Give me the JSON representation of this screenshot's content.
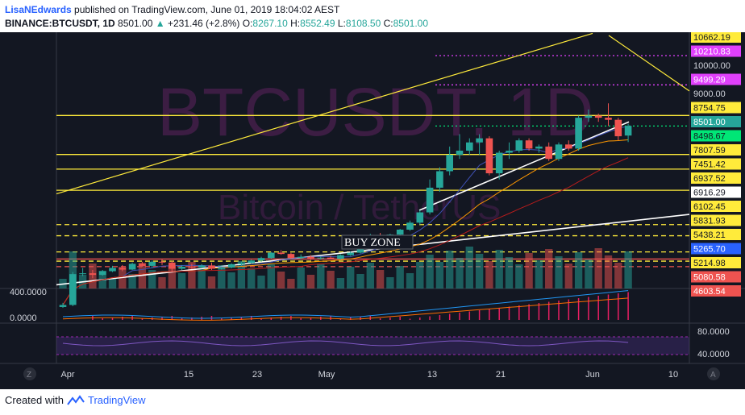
{
  "header": {
    "user": "LisaNEdwards",
    "published_text": "published on TradingView.com, June 01, 2019 18:04:02 AEST",
    "symbol": "BINANCE:BTCUSDT, 1D",
    "last": "8501.00",
    "arrow": "▲",
    "change": "+231.46 (+2.8%)",
    "open_label": "O:",
    "open": "8267.10",
    "high_label": "H:",
    "high": "8552.49",
    "low_label": "L:",
    "low": "8108.50",
    "close_label": "C:",
    "close": "8501.00"
  },
  "watermark": {
    "symbol": "BTCUSDT, 1D",
    "name": "Bitcoin / TetherUS"
  },
  "annotation": "BUY ZONE",
  "footer": {
    "created_with": "Created with",
    "brand": "TradingView"
  },
  "colors": {
    "background": "#131722",
    "up": "#26a69a",
    "down": "#ef5350",
    "yellow": "#ffeb3b",
    "magenta": "#e040fb",
    "accent": "#2962ff"
  },
  "chart_data": {
    "type": "candlestick",
    "price_scale_labels": [
      {
        "text": "10662.19",
        "value": 10662.19,
        "bg": "#ffeb3b",
        "fg": "#131722"
      },
      {
        "text": "10210.83",
        "value": 10210.83,
        "bg": "#e040fb",
        "fg": "#ffffff"
      },
      {
        "text": "10000.00",
        "value": 10000,
        "bg": "",
        "fg": "#d1d4dc"
      },
      {
        "text": "9499.29",
        "value": 9499.29,
        "bg": "#e040fb",
        "fg": "#ffffff"
      },
      {
        "text": "9000.00",
        "value": 9000,
        "bg": "",
        "fg": "#d1d4dc"
      },
      {
        "text": "8754.75",
        "value": 8754.75,
        "bg": "#ffeb3b",
        "fg": "#131722"
      },
      {
        "text": "8501.00",
        "value": 8501.0,
        "bg": "#26a69a",
        "fg": "#ffffff"
      },
      {
        "text": "8498.67",
        "value": 8498.67,
        "bg": "#00e676",
        "fg": "#131722"
      },
      {
        "text": "7807.59",
        "value": 7807.59,
        "bg": "#ffeb3b",
        "fg": "#131722"
      },
      {
        "text": "7451.42",
        "value": 7451.42,
        "bg": "#ffeb3b",
        "fg": "#131722"
      },
      {
        "text": "6937.52",
        "value": 6937.52,
        "bg": "#ffeb3b",
        "fg": "#131722"
      },
      {
        "text": "6916.29",
        "value": 6916.29,
        "bg": "#ffffff",
        "fg": "#131722"
      },
      {
        "text": "6102.45",
        "value": 6102.45,
        "bg": "#ffeb3b",
        "fg": "#131722"
      },
      {
        "text": "5831.93",
        "value": 5831.93,
        "bg": "#ffeb3b",
        "fg": "#131722"
      },
      {
        "text": "5438.21",
        "value": 5438.21,
        "bg": "#ffeb3b",
        "fg": "#131722"
      },
      {
        "text": "5265.70",
        "value": 5265.7,
        "bg": "#2962ff",
        "fg": "#ffffff"
      },
      {
        "text": "5214.98",
        "value": 5214.98,
        "bg": "#ffeb3b",
        "fg": "#131722"
      },
      {
        "text": "5080.58",
        "value": 5080.58,
        "bg": "#ef5350",
        "fg": "#ffffff"
      },
      {
        "text": "4603.54",
        "value": 4603.54,
        "bg": "#ef5350",
        "fg": "#ffffff"
      }
    ],
    "indicator_labels": [
      "400.0000",
      "0.0000"
    ],
    "rsi_labels": [
      "80.0000",
      "40.0000"
    ],
    "x_labels": [
      "Apr",
      "15",
      "23",
      "May",
      "13",
      "21",
      "Jun",
      "10"
    ],
    "horizontal_levels": [
      {
        "value": 8754.75,
        "color": "#ffeb3b",
        "style": "solid"
      },
      {
        "value": 7807.59,
        "color": "#ffeb3b",
        "style": "solid"
      },
      {
        "value": 7451.42,
        "color": "#ffeb3b",
        "style": "solid"
      },
      {
        "value": 6937.52,
        "color": "#ffeb3b",
        "style": "solid"
      },
      {
        "value": 6102.45,
        "color": "#ffeb3b",
        "style": "dashed"
      },
      {
        "value": 5831.93,
        "color": "#ffeb3b",
        "style": "dashed"
      },
      {
        "value": 5438.21,
        "color": "#ffeb3b",
        "style": "dashed"
      },
      {
        "value": 5214.98,
        "color": "#ffeb3b",
        "style": "dashed"
      },
      {
        "value": 5265.7,
        "color": "#ef5350",
        "style": "solid"
      },
      {
        "value": 5080.58,
        "color": "#ef5350",
        "style": "dashed"
      },
      {
        "value": 10210.83,
        "color": "#e040fb",
        "style": "dotted"
      },
      {
        "value": 9499.29,
        "color": "#e040fb",
        "style": "dotted"
      },
      {
        "value": 8498.67,
        "color": "#00e676",
        "style": "dotted"
      }
    ],
    "candles": [
      {
        "o": 4100,
        "h": 4200,
        "l": 4080,
        "c": 4150
      },
      {
        "o": 4150,
        "h": 4950,
        "l": 4120,
        "c": 4900
      },
      {
        "o": 4900,
        "h": 5050,
        "l": 4850,
        "c": 4920
      },
      {
        "o": 4920,
        "h": 5000,
        "l": 4800,
        "c": 4880
      },
      {
        "o": 4880,
        "h": 5000,
        "l": 4860,
        "c": 4970
      },
      {
        "o": 4970,
        "h": 5100,
        "l": 4950,
        "c": 5050
      },
      {
        "o": 5050,
        "h": 5120,
        "l": 4970,
        "c": 5010
      },
      {
        "o": 5010,
        "h": 5180,
        "l": 5000,
        "c": 5150
      },
      {
        "o": 5150,
        "h": 5200,
        "l": 5080,
        "c": 5100
      },
      {
        "o": 5100,
        "h": 5230,
        "l": 5050,
        "c": 5200
      },
      {
        "o": 5200,
        "h": 5260,
        "l": 5120,
        "c": 5180
      },
      {
        "o": 5180,
        "h": 5220,
        "l": 4950,
        "c": 5030
      },
      {
        "o": 5030,
        "h": 5120,
        "l": 5000,
        "c": 5080
      },
      {
        "o": 5080,
        "h": 5150,
        "l": 5020,
        "c": 5060
      },
      {
        "o": 5060,
        "h": 5140,
        "l": 5040,
        "c": 5110
      },
      {
        "o": 5110,
        "h": 5180,
        "l": 5000,
        "c": 5030
      },
      {
        "o": 5030,
        "h": 5090,
        "l": 5010,
        "c": 5060
      },
      {
        "o": 5060,
        "h": 5160,
        "l": 5040,
        "c": 5140
      },
      {
        "o": 5140,
        "h": 5200,
        "l": 5100,
        "c": 5170
      },
      {
        "o": 5170,
        "h": 5250,
        "l": 5150,
        "c": 5230
      },
      {
        "o": 5230,
        "h": 5320,
        "l": 5200,
        "c": 5290
      },
      {
        "o": 5290,
        "h": 5440,
        "l": 5270,
        "c": 5420
      },
      {
        "o": 5420,
        "h": 5480,
        "l": 5370,
        "c": 5390
      },
      {
        "o": 5390,
        "h": 5420,
        "l": 5260,
        "c": 5290
      },
      {
        "o": 5290,
        "h": 5380,
        "l": 5260,
        "c": 5320
      },
      {
        "o": 5320,
        "h": 5360,
        "l": 5240,
        "c": 5280
      },
      {
        "o": 5280,
        "h": 5330,
        "l": 5250,
        "c": 5300
      },
      {
        "o": 5300,
        "h": 5340,
        "l": 5260,
        "c": 5270
      },
      {
        "o": 5270,
        "h": 5380,
        "l": 5250,
        "c": 5360
      },
      {
        "o": 5360,
        "h": 5450,
        "l": 5340,
        "c": 5420
      },
      {
        "o": 5420,
        "h": 5800,
        "l": 5400,
        "c": 5750
      },
      {
        "o": 5750,
        "h": 5880,
        "l": 5700,
        "c": 5840
      },
      {
        "o": 5840,
        "h": 5900,
        "l": 5780,
        "c": 5820
      },
      {
        "o": 5820,
        "h": 5880,
        "l": 5790,
        "c": 5860
      },
      {
        "o": 5860,
        "h": 6000,
        "l": 5840,
        "c": 5980
      },
      {
        "o": 5980,
        "h": 6200,
        "l": 5950,
        "c": 6150
      },
      {
        "o": 6150,
        "h": 6450,
        "l": 6100,
        "c": 6400
      },
      {
        "o": 6400,
        "h": 7200,
        "l": 6350,
        "c": 7000
      },
      {
        "o": 7000,
        "h": 7500,
        "l": 6900,
        "c": 7400
      },
      {
        "o": 7400,
        "h": 8000,
        "l": 7300,
        "c": 7800
      },
      {
        "o": 7800,
        "h": 8300,
        "l": 7700,
        "c": 7900
      },
      {
        "o": 7900,
        "h": 8200,
        "l": 7800,
        "c": 8100
      },
      {
        "o": 8100,
        "h": 8300,
        "l": 7800,
        "c": 8200
      },
      {
        "o": 8200,
        "h": 8250,
        "l": 7300,
        "c": 7350
      },
      {
        "o": 7350,
        "h": 7900,
        "l": 7200,
        "c": 7850
      },
      {
        "o": 7850,
        "h": 8100,
        "l": 7700,
        "c": 7900
      },
      {
        "o": 7900,
        "h": 8200,
        "l": 7850,
        "c": 8150
      },
      {
        "o": 8150,
        "h": 8200,
        "l": 7900,
        "c": 7950
      },
      {
        "o": 7950,
        "h": 8050,
        "l": 7850,
        "c": 8000
      },
      {
        "o": 8000,
        "h": 8100,
        "l": 7650,
        "c": 7700
      },
      {
        "o": 7700,
        "h": 8100,
        "l": 7650,
        "c": 8050
      },
      {
        "o": 8050,
        "h": 8150,
        "l": 7900,
        "c": 7950
      },
      {
        "o": 7950,
        "h": 8750,
        "l": 7900,
        "c": 8700
      },
      {
        "o": 8700,
        "h": 8900,
        "l": 8600,
        "c": 8750
      },
      {
        "o": 8750,
        "h": 8800,
        "l": 8600,
        "c": 8700
      },
      {
        "o": 8700,
        "h": 9050,
        "l": 8500,
        "c": 8650
      },
      {
        "o": 8650,
        "h": 8700,
        "l": 8150,
        "c": 8250
      },
      {
        "o": 8267.1,
        "h": 8552.49,
        "l": 8108.5,
        "c": 8501.0
      }
    ]
  }
}
